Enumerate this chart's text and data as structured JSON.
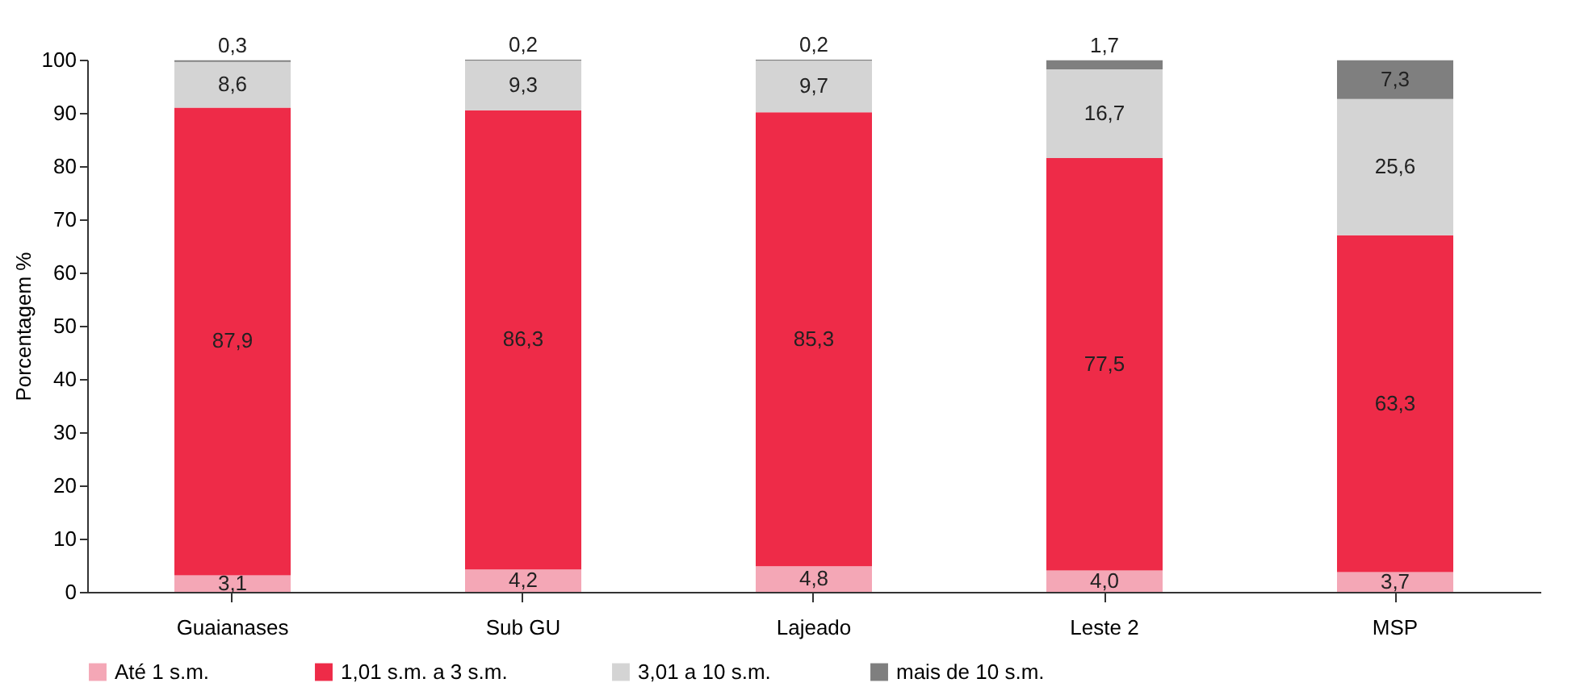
{
  "chart_data": {
    "type": "bar",
    "stacked": true,
    "ylabel": "Porcentagem %",
    "categories": [
      "Guaianases",
      "Sub GU",
      "Lajeado",
      "Leste 2",
      "MSP"
    ],
    "ylim": [
      0,
      100
    ],
    "yticks": [
      0,
      10,
      20,
      30,
      40,
      50,
      60,
      70,
      80,
      90,
      100
    ],
    "grid": false,
    "legend": "bottom",
    "series": [
      {
        "name": "Até 1  s.m.",
        "color": "#f4a7b6",
        "values": [
          3.1,
          4.2,
          4.8,
          4.0,
          3.7
        ],
        "value_labels": [
          "3,1",
          "4,2",
          "4,8",
          "4,0",
          "3,7"
        ]
      },
      {
        "name": "1,01 s.m.  a 3 s.m.",
        "color": "#ee2b48",
        "values": [
          87.9,
          86.3,
          85.3,
          77.5,
          63.3
        ],
        "value_labels": [
          "87,9",
          "86,3",
          "85,3",
          "77,5",
          "63,3"
        ]
      },
      {
        "name": "3,01 a 10 s.m.",
        "color": "#d4d4d4",
        "values": [
          8.6,
          9.3,
          9.7,
          16.7,
          25.6
        ],
        "value_labels": [
          "8,6",
          "9,3",
          "9,7",
          "16,7",
          "25,6"
        ]
      },
      {
        "name": "mais de 10 s.m.",
        "color": "#7f7f7f",
        "values": [
          0.3,
          0.2,
          0.2,
          1.7,
          7.3
        ],
        "value_labels": [
          "0,3",
          "0,2",
          "0,2",
          "1,7",
          "7,3"
        ]
      }
    ]
  }
}
